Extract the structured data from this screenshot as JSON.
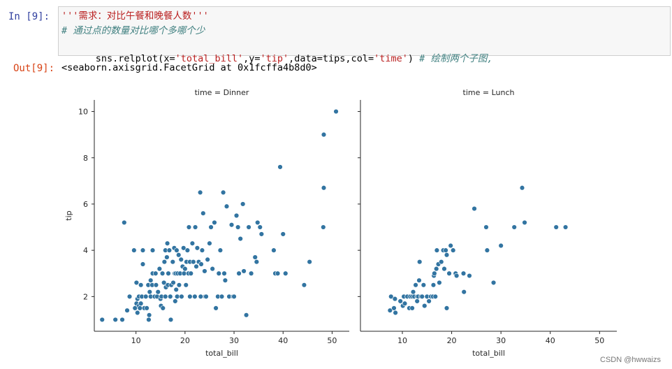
{
  "input_prompt": "In  [9]:",
  "output_prompt": "Out[9]:",
  "code": {
    "line1": "'''需求：对比午餐和晚餐人数'''",
    "line2": "# 通过点的数量对比哪个多哪个少",
    "line3_parts": [
      {
        "text": "sns.relplot(x=",
        "kind": "code"
      },
      {
        "text": "'total_bill'",
        "kind": "str"
      },
      {
        "text": ",y=",
        "kind": "code"
      },
      {
        "text": "'tip'",
        "kind": "str"
      },
      {
        "text": ",data=tips,col=",
        "kind": "code"
      },
      {
        "text": "'time'",
        "kind": "str"
      },
      {
        "text": ") ",
        "kind": "code"
      },
      {
        "text": "# 绘制两个子图,",
        "kind": "cm"
      }
    ]
  },
  "output_text": "<seaborn.axisgrid.FacetGrid at 0x1fcffa4b8d0>",
  "watermark": "CSDN @hwwaizs",
  "colors": {
    "point": "#3274a1",
    "point_edge": "#ffffff",
    "axis": "#262626"
  },
  "chart_data": [
    {
      "type": "scatter",
      "title": "time = Dinner",
      "xlabel": "total_bill",
      "ylabel": "tip",
      "xlim": [
        1.5,
        53.5
      ],
      "ylim": [
        0.5,
        10.5
      ],
      "xticks": [
        10,
        20,
        30,
        40,
        50
      ],
      "yticks": [
        2,
        4,
        6,
        8,
        10
      ],
      "points": [
        [
          3.1,
          1.0
        ],
        [
          5.8,
          1.0
        ],
        [
          7.2,
          1.0
        ],
        [
          7.6,
          5.2
        ],
        [
          8.2,
          1.4
        ],
        [
          8.7,
          2.0
        ],
        [
          9.6,
          4.0
        ],
        [
          9.8,
          1.5
        ],
        [
          10.1,
          1.7
        ],
        [
          10.3,
          1.9
        ],
        [
          10.1,
          2.6
        ],
        [
          10.3,
          1.3
        ],
        [
          10.6,
          1.6
        ],
        [
          10.6,
          2.0
        ],
        [
          10.8,
          1.5
        ],
        [
          11.0,
          1.7
        ],
        [
          11.0,
          2.5
        ],
        [
          11.2,
          2.0
        ],
        [
          11.4,
          3.4
        ],
        [
          11.4,
          4.0
        ],
        [
          11.7,
          1.5
        ],
        [
          12.0,
          2.0
        ],
        [
          12.2,
          1.5
        ],
        [
          12.5,
          2.5
        ],
        [
          12.6,
          1.0
        ],
        [
          12.7,
          1.2
        ],
        [
          12.8,
          2.2
        ],
        [
          13.0,
          2.0
        ],
        [
          13.0,
          2.7
        ],
        [
          13.3,
          2.5
        ],
        [
          13.4,
          3.0
        ],
        [
          13.4,
          4.0
        ],
        [
          13.8,
          2.0
        ],
        [
          14.0,
          3.0
        ],
        [
          14.1,
          2.5
        ],
        [
          14.3,
          2.0
        ],
        [
          14.5,
          2.2
        ],
        [
          14.8,
          3.2
        ],
        [
          15.0,
          1.9
        ],
        [
          15.1,
          1.6
        ],
        [
          15.2,
          2.0
        ],
        [
          15.4,
          3.0
        ],
        [
          15.5,
          1.5
        ],
        [
          15.7,
          2.6
        ],
        [
          15.8,
          3.5
        ],
        [
          16.0,
          4.0
        ],
        [
          16.0,
          2.0
        ],
        [
          16.1,
          2.4
        ],
        [
          16.3,
          3.7
        ],
        [
          16.4,
          4.3
        ],
        [
          16.5,
          2.5
        ],
        [
          16.6,
          3.0
        ],
        [
          16.8,
          4.0
        ],
        [
          17.0,
          2.0
        ],
        [
          17.1,
          1.0
        ],
        [
          17.2,
          2.5
        ],
        [
          17.5,
          3.5
        ],
        [
          17.6,
          2.6
        ],
        [
          17.8,
          4.1
        ],
        [
          17.9,
          3.0
        ],
        [
          18.0,
          1.8
        ],
        [
          18.1,
          3.0
        ],
        [
          18.2,
          2.3
        ],
        [
          18.3,
          4.0
        ],
        [
          18.4,
          2.0
        ],
        [
          18.5,
          3.0
        ],
        [
          18.7,
          3.8
        ],
        [
          18.8,
          2.5
        ],
        [
          19.0,
          3.0
        ],
        [
          19.2,
          3.6
        ],
        [
          19.3,
          2.0
        ],
        [
          19.5,
          3.3
        ],
        [
          19.7,
          4.1
        ],
        [
          19.8,
          3.0
        ],
        [
          20.0,
          3.2
        ],
        [
          20.2,
          2.5
        ],
        [
          20.3,
          3.5
        ],
        [
          20.5,
          4.0
        ],
        [
          20.7,
          3.0
        ],
        [
          20.8,
          5.0
        ],
        [
          21.0,
          2.0
        ],
        [
          21.0,
          3.5
        ],
        [
          21.2,
          3.0
        ],
        [
          21.5,
          4.3
        ],
        [
          21.7,
          3.5
        ],
        [
          22.0,
          2.0
        ],
        [
          22.1,
          5.0
        ],
        [
          22.3,
          3.3
        ],
        [
          22.5,
          4.1
        ],
        [
          22.8,
          3.5
        ],
        [
          23.1,
          6.5
        ],
        [
          23.2,
          2.0
        ],
        [
          23.3,
          3.4
        ],
        [
          23.5,
          4.0
        ],
        [
          23.7,
          5.6
        ],
        [
          24.0,
          3.1
        ],
        [
          24.1,
          2.0
        ],
        [
          24.3,
          2.0
        ],
        [
          24.6,
          3.6
        ],
        [
          25.0,
          4.3
        ],
        [
          25.3,
          5.0
        ],
        [
          25.6,
          3.2
        ],
        [
          26.0,
          5.2
        ],
        [
          26.3,
          1.5
        ],
        [
          26.7,
          2.0
        ],
        [
          26.9,
          3.0
        ],
        [
          27.2,
          4.0
        ],
        [
          27.5,
          2.0
        ],
        [
          27.8,
          6.5
        ],
        [
          28.0,
          3.0
        ],
        [
          28.2,
          2.7
        ],
        [
          28.5,
          5.9
        ],
        [
          29.0,
          2.0
        ],
        [
          29.5,
          5.1
        ],
        [
          29.8,
          2.0
        ],
        [
          30.0,
          2.0
        ],
        [
          30.5,
          5.5
        ],
        [
          30.8,
          5.0
        ],
        [
          31.0,
          3.0
        ],
        [
          31.3,
          4.5
        ],
        [
          31.8,
          6.0
        ],
        [
          32.0,
          3.1
        ],
        [
          32.5,
          1.2
        ],
        [
          33.0,
          5.0
        ],
        [
          33.5,
          3.0
        ],
        [
          34.3,
          3.7
        ],
        [
          34.6,
          3.5
        ],
        [
          34.8,
          5.2
        ],
        [
          35.3,
          5.0
        ],
        [
          35.6,
          4.7
        ],
        [
          38.1,
          4.0
        ],
        [
          38.4,
          3.0
        ],
        [
          38.9,
          3.0
        ],
        [
          39.4,
          7.6
        ],
        [
          40.0,
          4.7
        ],
        [
          40.5,
          3.0
        ],
        [
          44.3,
          2.5
        ],
        [
          45.4,
          3.5
        ],
        [
          48.2,
          5.0
        ],
        [
          48.3,
          6.7
        ],
        [
          48.3,
          9.0
        ],
        [
          50.8,
          10.0
        ]
      ]
    },
    {
      "type": "scatter",
      "title": "time = Lunch",
      "xlabel": "total_bill",
      "ylabel": "",
      "xlim": [
        1.5,
        53.5
      ],
      "ylim": [
        0.5,
        10.5
      ],
      "xticks": [
        10,
        20,
        30,
        40,
        50
      ],
      "yticks": [
        2,
        4,
        6,
        8,
        10
      ],
      "points": [
        [
          7.5,
          1.4
        ],
        [
          7.7,
          2.0
        ],
        [
          8.3,
          1.5
        ],
        [
          8.5,
          1.9
        ],
        [
          8.6,
          1.3
        ],
        [
          9.6,
          1.8
        ],
        [
          10.1,
          1.6
        ],
        [
          10.3,
          2.0
        ],
        [
          10.5,
          1.7
        ],
        [
          11.0,
          2.0
        ],
        [
          11.4,
          1.5
        ],
        [
          11.6,
          2.0
        ],
        [
          12.0,
          1.5
        ],
        [
          12.0,
          2.0
        ],
        [
          12.2,
          2.2
        ],
        [
          12.4,
          2.0
        ],
        [
          12.7,
          2.5
        ],
        [
          13.0,
          2.0
        ],
        [
          13.0,
          1.8
        ],
        [
          13.2,
          2.0
        ],
        [
          13.4,
          2.7
        ],
        [
          13.5,
          3.5
        ],
        [
          13.8,
          2.0
        ],
        [
          14.0,
          2.0
        ],
        [
          14.3,
          2.5
        ],
        [
          14.5,
          1.6
        ],
        [
          15.0,
          2.0
        ],
        [
          15.4,
          1.8
        ],
        [
          15.8,
          2.0
        ],
        [
          16.2,
          2.0
        ],
        [
          16.3,
          2.5
        ],
        [
          16.4,
          2.9
        ],
        [
          16.5,
          3.0
        ],
        [
          16.7,
          2.0
        ],
        [
          16.9,
          3.2
        ],
        [
          17.0,
          4.0
        ],
        [
          17.3,
          3.4
        ],
        [
          17.5,
          2.6
        ],
        [
          17.9,
          3.5
        ],
        [
          18.3,
          4.0
        ],
        [
          18.5,
          3.2
        ],
        [
          18.8,
          4.0
        ],
        [
          19.0,
          1.5
        ],
        [
          19.0,
          3.8
        ],
        [
          19.5,
          3.0
        ],
        [
          19.8,
          4.2
        ],
        [
          20.3,
          4.0
        ],
        [
          20.8,
          3.0
        ],
        [
          21.0,
          2.9
        ],
        [
          22.4,
          3.0
        ],
        [
          22.5,
          2.2
        ],
        [
          23.6,
          2.9
        ],
        [
          24.6,
          5.8
        ],
        [
          27.0,
          5.0
        ],
        [
          27.2,
          4.0
        ],
        [
          28.5,
          2.6
        ],
        [
          30.0,
          4.2
        ],
        [
          32.7,
          5.0
        ],
        [
          34.3,
          6.7
        ],
        [
          34.8,
          5.2
        ],
        [
          41.2,
          5.0
        ],
        [
          43.1,
          5.0
        ]
      ]
    }
  ]
}
